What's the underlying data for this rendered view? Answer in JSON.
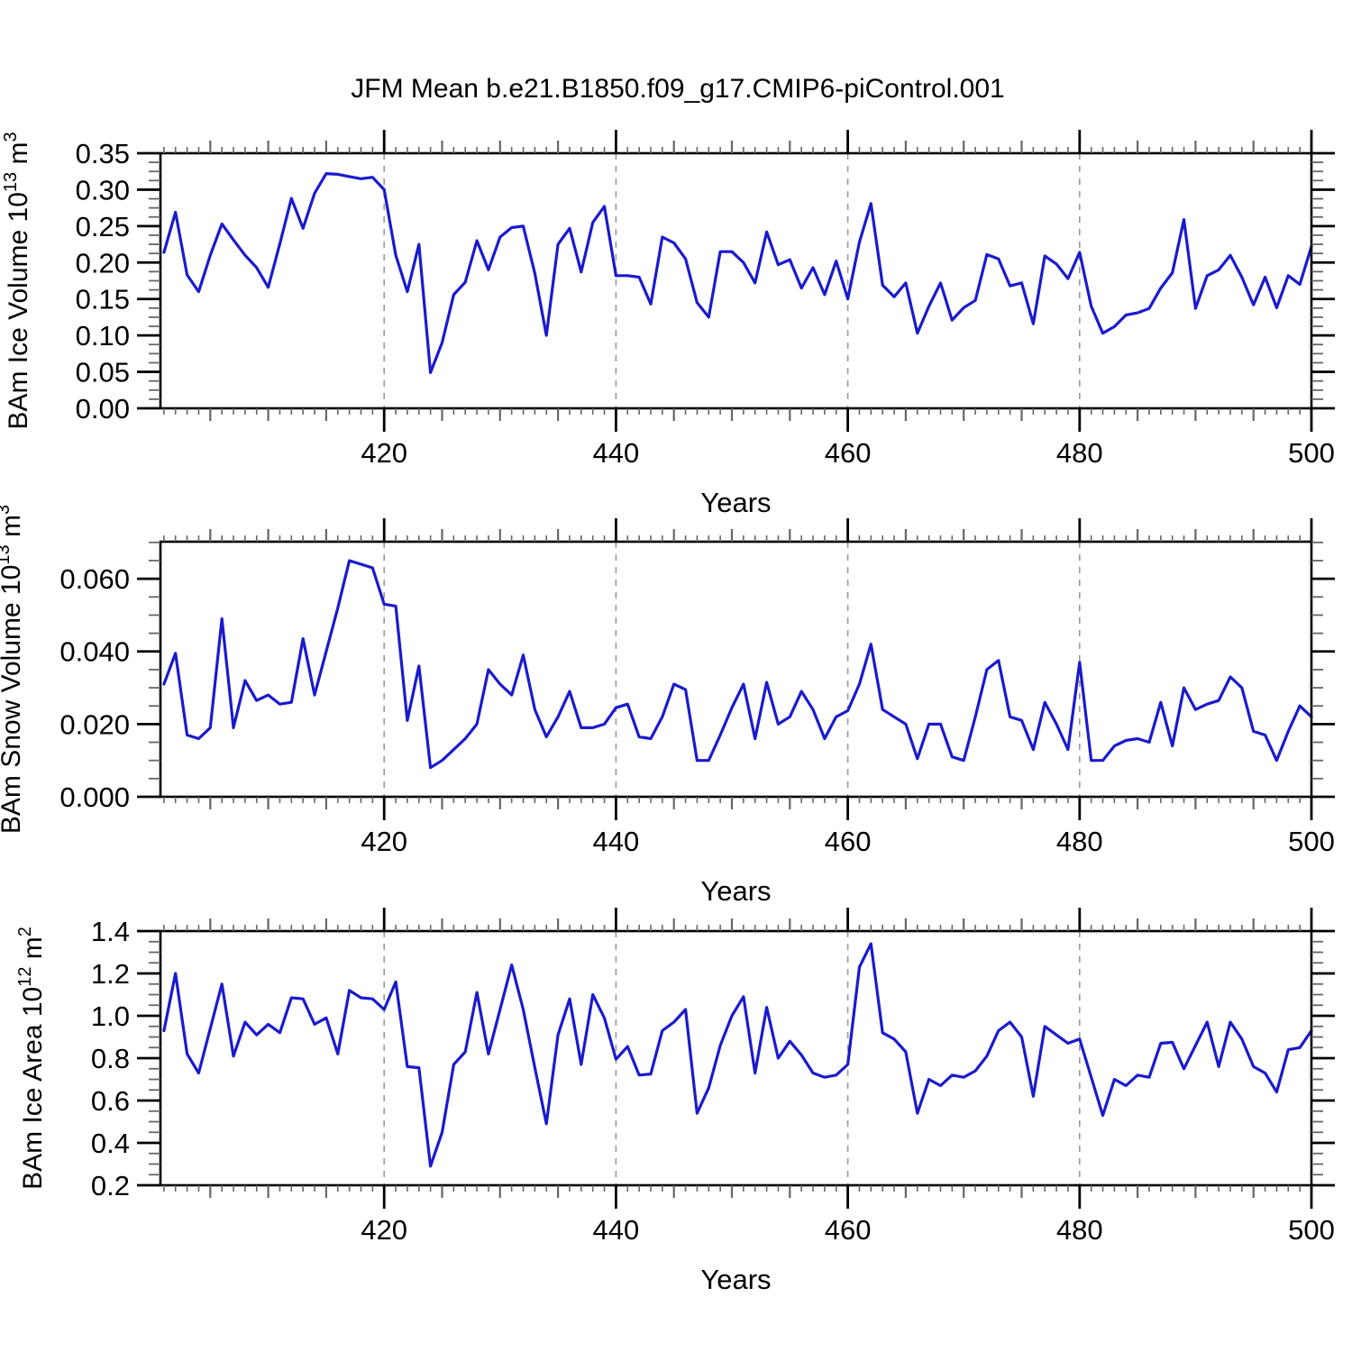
{
  "title": "JFM Mean b.e21.B1850.f09_g17.CMIP6-piControl.001",
  "line_color": "#1A1ACD",
  "grid_color": "#999999",
  "frame_color": "#000000",
  "minor_tick_color": "#666666",
  "chart_data": {
    "type": "line",
    "title": "JFM Mean b.e21.B1850.f09_g17.CMIP6-piControl.001",
    "x_axis": {
      "label": "Years",
      "major_ticks": [
        420,
        440,
        460,
        480,
        500
      ],
      "medium_step": 5,
      "minor_step": 1,
      "grid_x": [
        420,
        440,
        460,
        480
      ],
      "xlim": [
        400.7,
        500
      ]
    },
    "x": [
      401,
      402,
      403,
      404,
      405,
      406,
      407,
      408,
      409,
      410,
      411,
      412,
      413,
      414,
      415,
      416,
      417,
      418,
      419,
      420,
      421,
      422,
      423,
      424,
      425,
      426,
      427,
      428,
      429,
      430,
      431,
      432,
      433,
      434,
      435,
      436,
      437,
      438,
      439,
      440,
      441,
      442,
      443,
      444,
      445,
      446,
      447,
      448,
      449,
      450,
      451,
      452,
      453,
      454,
      455,
      456,
      457,
      458,
      459,
      460,
      461,
      462,
      463,
      464,
      465,
      466,
      467,
      468,
      469,
      470,
      471,
      472,
      473,
      474,
      475,
      476,
      477,
      478,
      479,
      480,
      481,
      482,
      483,
      484,
      485,
      486,
      487,
      488,
      489,
      490,
      491,
      492,
      493,
      494,
      495,
      496,
      497,
      498,
      499,
      500
    ],
    "panels": [
      {
        "id": "bam-ice-volume",
        "ylabel_text": "BAm Ice Volume 10^13 m^3",
        "ylabel_parts": [
          {
            "t": "BAm Ice Volume 10"
          },
          {
            "t": "13",
            "sup": true
          },
          {
            "t": " m"
          },
          {
            "t": "3",
            "sup": true
          }
        ],
        "ylim": [
          0,
          0.35
        ],
        "yticks": [
          {
            "v": 0.35,
            "l": "0.35"
          },
          {
            "v": 0.3,
            "l": "0.30"
          },
          {
            "v": 0.25,
            "l": "0.25"
          },
          {
            "v": 0.2,
            "l": "0.20"
          },
          {
            "v": 0.15,
            "l": "0.15"
          },
          {
            "v": 0.1,
            "l": "0.10"
          },
          {
            "v": 0.05,
            "l": "0.05"
          },
          {
            "v": 0.0,
            "l": "0.00"
          }
        ],
        "y_minor_step": 0.0125,
        "ylabel_x": 30,
        "values": [
          0.214,
          0.269,
          0.183,
          0.16,
          0.21,
          0.253,
          0.231,
          0.21,
          0.193,
          0.166,
          0.226,
          0.288,
          0.247,
          0.295,
          0.322,
          0.321,
          0.318,
          0.315,
          0.317,
          0.3,
          0.21,
          0.16,
          0.225,
          0.049,
          0.09,
          0.156,
          0.173,
          0.23,
          0.19,
          0.235,
          0.248,
          0.25,
          0.185,
          0.1,
          0.225,
          0.247,
          0.187,
          0.255,
          0.277,
          0.182,
          0.182,
          0.18,
          0.143,
          0.235,
          0.227,
          0.205,
          0.145,
          0.125,
          0.215,
          0.215,
          0.2,
          0.172,
          0.242,
          0.197,
          0.204,
          0.165,
          0.193,
          0.156,
          0.202,
          0.15,
          0.228,
          0.281,
          0.169,
          0.153,
          0.172,
          0.103,
          0.14,
          0.172,
          0.121,
          0.138,
          0.148,
          0.211,
          0.205,
          0.168,
          0.172,
          0.116,
          0.209,
          0.198,
          0.178,
          0.214,
          0.14,
          0.103,
          0.112,
          0.128,
          0.131,
          0.137,
          0.165,
          0.186,
          0.259,
          0.137,
          0.182,
          0.19,
          0.21,
          0.18,
          0.142,
          0.18,
          0.138,
          0.182,
          0.17,
          0.222
        ]
      },
      {
        "id": "bam-snow-volume",
        "ylabel_text": "BAm Snow Volume 10^13 m^3",
        "ylabel_parts": [
          {
            "t": "BAm Snow Volume 10"
          },
          {
            "t": "13",
            "sup": true
          },
          {
            "t": " m"
          },
          {
            "t": "3",
            "sup": true
          }
        ],
        "ylim": [
          0,
          0.0702
        ],
        "yticks": [
          {
            "v": 0.06,
            "l": "0.060"
          },
          {
            "v": 0.04,
            "l": "0.040"
          },
          {
            "v": 0.02,
            "l": "0.020"
          },
          {
            "v": 0.0,
            "l": "0.000"
          }
        ],
        "y_minor_step": 0.005,
        "ylabel_x": 22,
        "values": [
          0.031,
          0.0395,
          0.017,
          0.016,
          0.019,
          0.049,
          0.019,
          0.032,
          0.0265,
          0.028,
          0.0255,
          0.026,
          0.0435,
          0.028,
          0.04,
          0.052,
          0.065,
          0.064,
          0.063,
          0.053,
          0.0525,
          0.021,
          0.036,
          0.008,
          0.01,
          0.013,
          0.016,
          0.02,
          0.035,
          0.031,
          0.028,
          0.039,
          0.024,
          0.0165,
          0.022,
          0.029,
          0.019,
          0.019,
          0.02,
          0.0245,
          0.0255,
          0.0165,
          0.016,
          0.022,
          0.031,
          0.0295,
          0.01,
          0.01,
          0.017,
          0.0245,
          0.031,
          0.016,
          0.0315,
          0.02,
          0.022,
          0.029,
          0.024,
          0.016,
          0.022,
          0.0237,
          0.031,
          0.042,
          0.024,
          0.022,
          0.02,
          0.0105,
          0.02,
          0.02,
          0.011,
          0.01,
          0.022,
          0.035,
          0.0375,
          0.022,
          0.021,
          0.013,
          0.026,
          0.02,
          0.013,
          0.037,
          0.01,
          0.01,
          0.014,
          0.0155,
          0.016,
          0.015,
          0.026,
          0.014,
          0.03,
          0.024,
          0.0255,
          0.0265,
          0.033,
          0.03,
          0.018,
          0.017,
          0.01,
          0.018,
          0.025,
          0.022
        ]
      },
      {
        "id": "bam-ice-area",
        "ylabel_text": "BAm Ice Area 10^12 m^2",
        "ylabel_parts": [
          {
            "t": "BAm Ice Area 10"
          },
          {
            "t": "12",
            "sup": true
          },
          {
            "t": " m"
          },
          {
            "t": "2",
            "sup": true
          }
        ],
        "ylim": [
          0.2,
          1.4
        ],
        "yticks": [
          {
            "v": 1.4,
            "l": "1.4"
          },
          {
            "v": 1.2,
            "l": "1.2"
          },
          {
            "v": 1.0,
            "l": "1.0"
          },
          {
            "v": 0.8,
            "l": "0.8"
          },
          {
            "v": 0.6,
            "l": "0.6"
          },
          {
            "v": 0.4,
            "l": "0.4"
          },
          {
            "v": 0.2,
            "l": "0.2"
          }
        ],
        "y_minor_step": 0.05,
        "ylabel_x": 46,
        "values": [
          0.93,
          1.2,
          0.82,
          0.73,
          0.94,
          1.15,
          0.81,
          0.97,
          0.91,
          0.96,
          0.92,
          1.085,
          1.08,
          0.96,
          0.99,
          0.82,
          1.12,
          1.085,
          1.08,
          1.03,
          1.16,
          0.76,
          0.755,
          0.29,
          0.45,
          0.77,
          0.83,
          1.11,
          0.82,
          1.03,
          1.24,
          1.03,
          0.755,
          0.49,
          0.91,
          1.08,
          0.77,
          1.1,
          0.99,
          0.795,
          0.855,
          0.72,
          0.725,
          0.93,
          0.97,
          1.03,
          0.54,
          0.66,
          0.86,
          1.0,
          1.09,
          0.73,
          1.04,
          0.8,
          0.88,
          0.815,
          0.73,
          0.71,
          0.72,
          0.77,
          1.23,
          1.34,
          0.92,
          0.89,
          0.83,
          0.54,
          0.7,
          0.67,
          0.72,
          0.71,
          0.74,
          0.81,
          0.93,
          0.97,
          0.9,
          0.62,
          0.95,
          0.91,
          0.87,
          0.89,
          0.71,
          0.53,
          0.7,
          0.67,
          0.72,
          0.71,
          0.87,
          0.875,
          0.75,
          0.86,
          0.97,
          0.76,
          0.97,
          0.89,
          0.76,
          0.73,
          0.64,
          0.84,
          0.85,
          0.93
        ]
      }
    ]
  }
}
